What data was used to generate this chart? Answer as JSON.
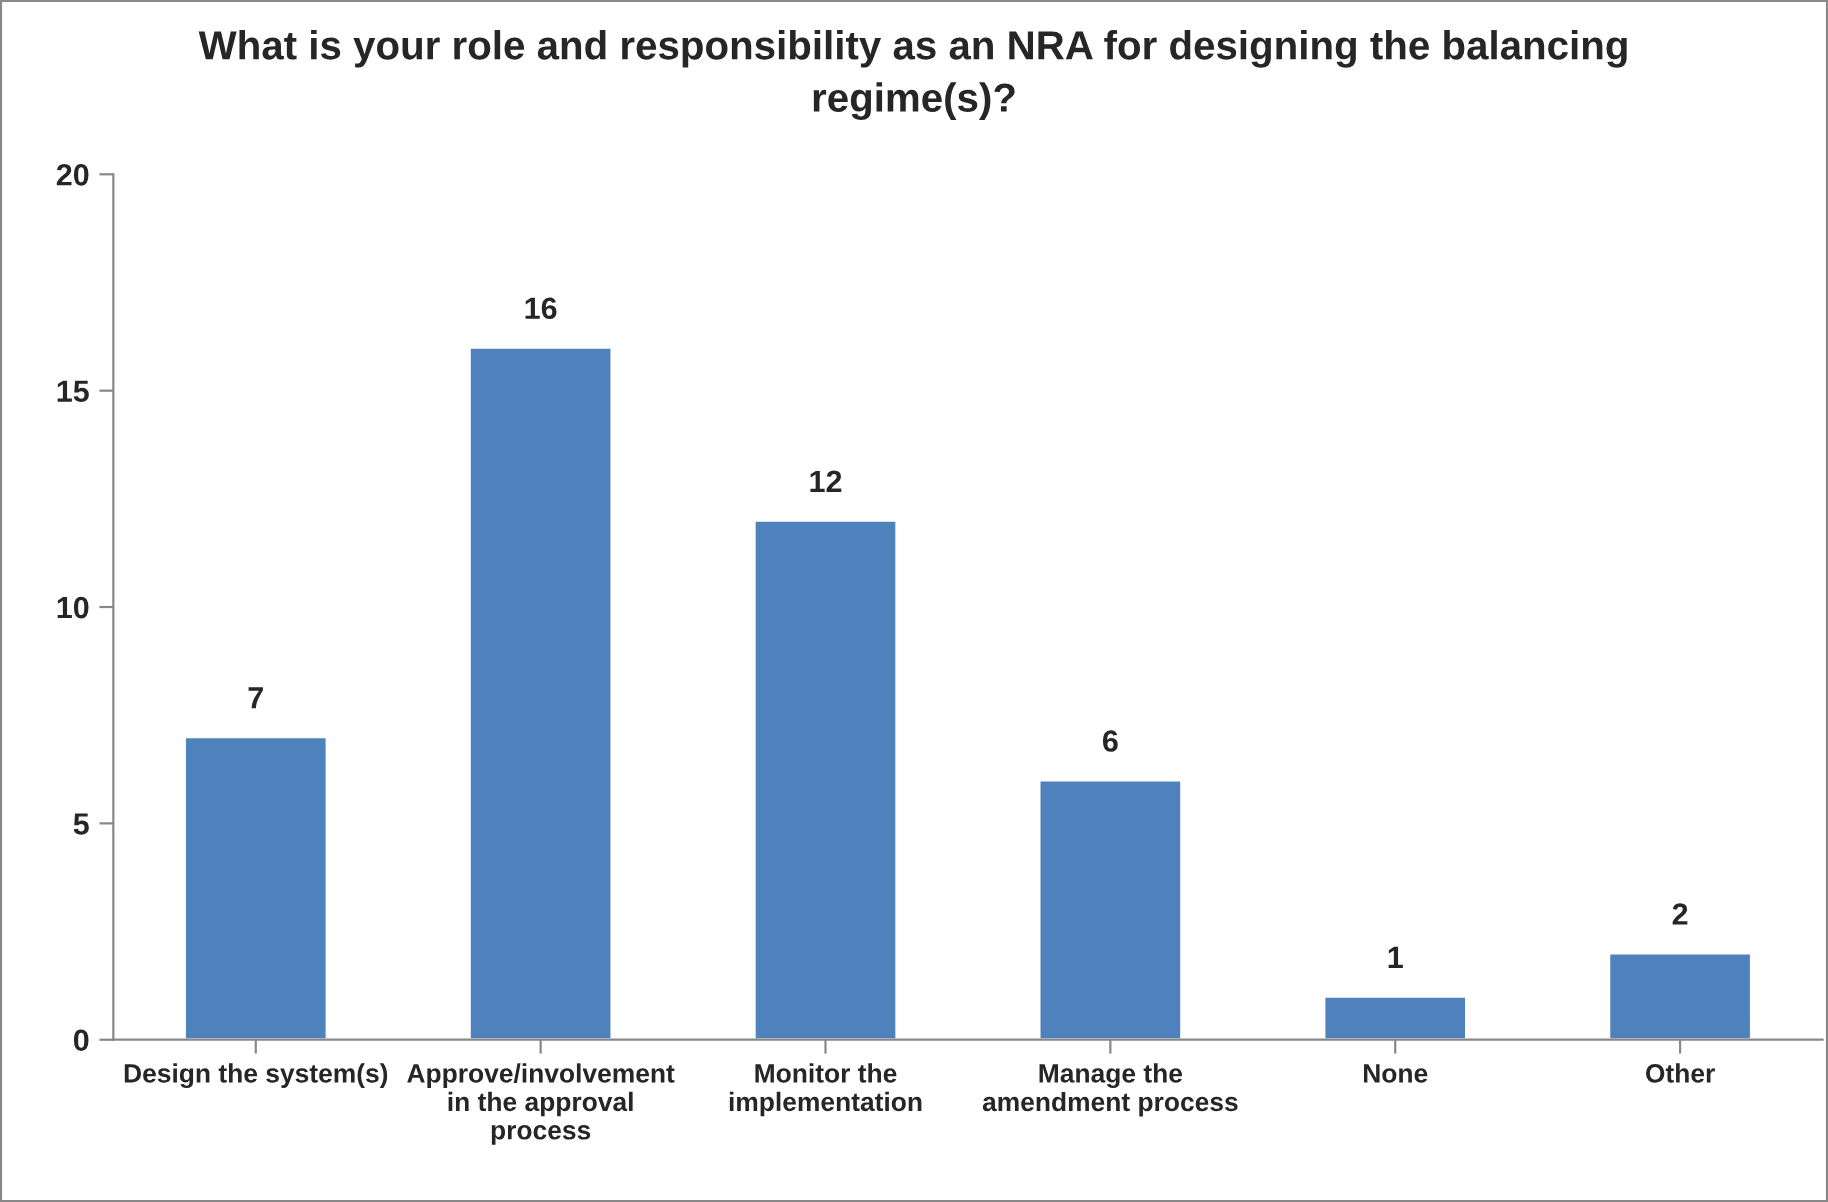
{
  "chart_data": {
    "type": "bar",
    "title": "What is your role and responsibility as an NRA for designing the balancing\nregime(s)?",
    "categories": [
      "Design the system(s)",
      "Approve/involvement\nin the approval\nprocess",
      "Monitor the\nimplementation",
      "Manage the\namendment process",
      "None",
      "Other"
    ],
    "values": [
      7,
      16,
      12,
      6,
      1,
      2
    ],
    "color": "#4f81bd",
    "ylim": [
      0,
      20
    ],
    "yticks": [
      0,
      5,
      10,
      15,
      20
    ],
    "data_labels": true,
    "grid": false,
    "legend": false
  }
}
